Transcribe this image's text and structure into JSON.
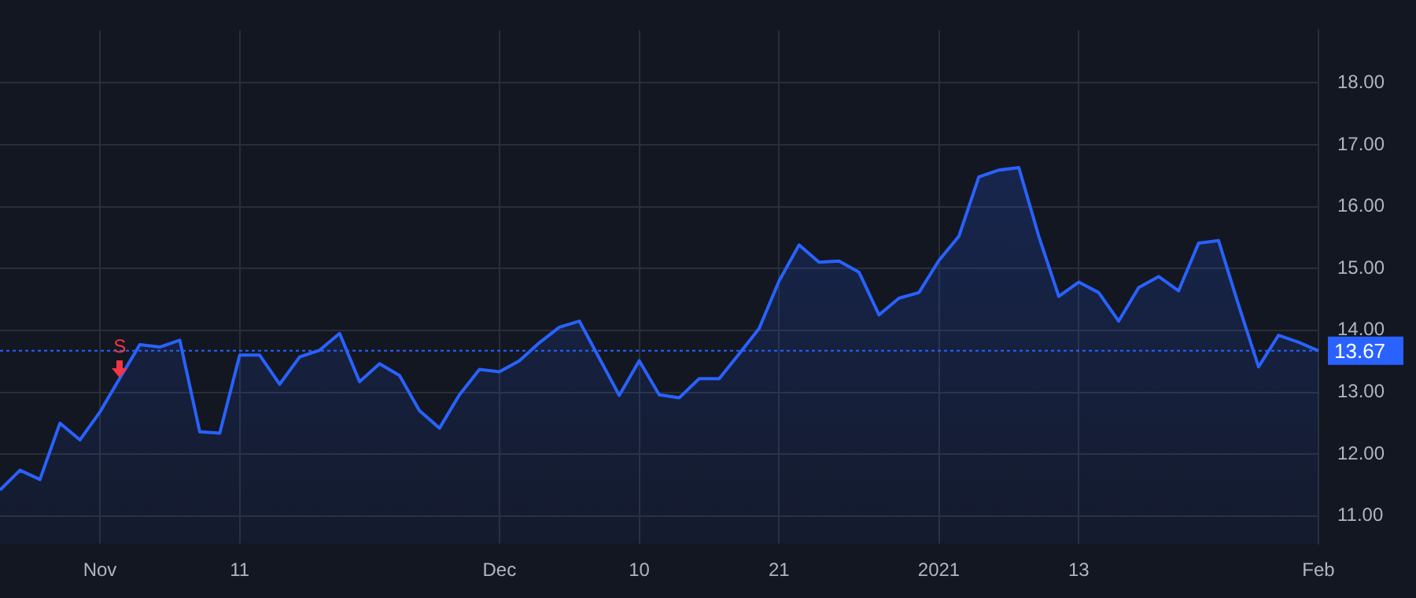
{
  "chart_data": {
    "type": "area",
    "categories": [
      null,
      null,
      null,
      null,
      null,
      "Nov",
      null,
      null,
      null,
      null,
      null,
      null,
      "11",
      null,
      null,
      null,
      null,
      null,
      null,
      null,
      null,
      null,
      null,
      null,
      null,
      "Dec",
      null,
      null,
      null,
      null,
      null,
      null,
      "10",
      null,
      null,
      null,
      null,
      null,
      null,
      "21",
      null,
      null,
      null,
      null,
      null,
      null,
      null,
      "2021",
      null,
      null,
      null,
      null,
      null,
      null,
      "13",
      null,
      null,
      null,
      null,
      null,
      null,
      null,
      null,
      null,
      null,
      null,
      "Feb"
    ],
    "series": [
      {
        "color": "#2962ff",
        "values": [
          11.42,
          11.74,
          11.59,
          12.5,
          12.23,
          12.68,
          13.23,
          13.77,
          13.73,
          13.84,
          12.36,
          12.34,
          13.6,
          13.6,
          13.13,
          13.57,
          13.68,
          13.95,
          13.17,
          13.46,
          13.27,
          12.7,
          12.42,
          12.96,
          13.37,
          13.33,
          13.51,
          13.8,
          14.05,
          14.15,
          13.55,
          12.95,
          13.51,
          12.96,
          12.91,
          13.22,
          13.22,
          13.62,
          14.03,
          14.8,
          15.38,
          15.1,
          15.12,
          14.94,
          14.25,
          14.52,
          14.61,
          15.13,
          15.52,
          16.48,
          16.59,
          16.63,
          15.52,
          14.55,
          14.78,
          14.61,
          14.15,
          14.69,
          14.87,
          14.64,
          15.41,
          15.45,
          14.41,
          13.41,
          13.92,
          13.81,
          13.67
        ]
      }
    ],
    "ylim": [
      10.55,
      18.85
    ],
    "yticks": [
      {
        "value": 11,
        "label": "11.00"
      },
      {
        "value": 12,
        "label": "12.00"
      },
      {
        "value": 13,
        "label": "13.00"
      },
      {
        "value": 14,
        "label": "14.00"
      },
      {
        "value": 15,
        "label": "15.00"
      },
      {
        "value": 16,
        "label": "16.00"
      },
      {
        "value": 17,
        "label": "17.00"
      },
      {
        "value": 18,
        "label": "18.00"
      }
    ],
    "ref_lines": [
      {
        "axis": "y",
        "value": 13.67,
        "label": "13.67",
        "color": "#2962ff",
        "line_style": "dotted"
      }
    ],
    "annotations": [
      {
        "text": "S",
        "y": 13.73
      }
    ],
    "grid": true,
    "legend": false,
    "marker": "none",
    "line_style": "solid"
  }
}
